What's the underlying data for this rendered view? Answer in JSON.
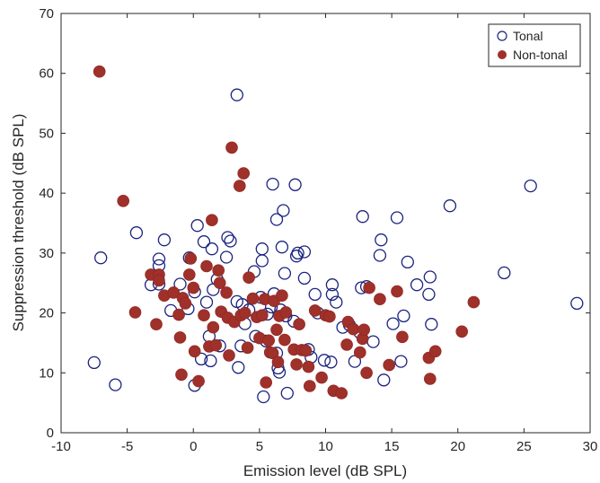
{
  "chart_data": {
    "type": "scatter",
    "title": "",
    "xlabel": "Emission level (dB SPL)",
    "ylabel": "Suppression threshold (dB SPL)",
    "xlim": [
      -10,
      30
    ],
    "ylim": [
      0,
      70
    ],
    "xticks": [
      "-10",
      "-5",
      "0",
      "5",
      "10",
      "15",
      "20",
      "25",
      "30"
    ],
    "yticks": [
      "0",
      "10",
      "20",
      "30",
      "40",
      "50",
      "60",
      "70"
    ],
    "grid": false,
    "legend_position": "top-right",
    "series": [
      {
        "name": "Tonal",
        "marker": "open-circle",
        "color": "#1a237e",
        "points": [
          [
            -7.5,
            11.7
          ],
          [
            -7.0,
            29.2
          ],
          [
            -5.9,
            8.0
          ],
          [
            -4.3,
            33.4
          ],
          [
            -3.2,
            24.7
          ],
          [
            -2.6,
            29.0
          ],
          [
            -2.6,
            27.9
          ],
          [
            -2.6,
            24.8
          ],
          [
            -2.2,
            32.2
          ],
          [
            -1.7,
            20.4
          ],
          [
            -1.0,
            24.8
          ],
          [
            -0.4,
            20.7
          ],
          [
            -0.3,
            29.2
          ],
          [
            0.1,
            23.5
          ],
          [
            0.1,
            7.9
          ],
          [
            0.3,
            34.6
          ],
          [
            0.6,
            12.3
          ],
          [
            0.8,
            31.9
          ],
          [
            1.0,
            21.8
          ],
          [
            1.2,
            16.1
          ],
          [
            1.3,
            12.0
          ],
          [
            1.4,
            30.7
          ],
          [
            1.5,
            23.9
          ],
          [
            1.8,
            25.6
          ],
          [
            2.0,
            14.5
          ],
          [
            2.5,
            29.3
          ],
          [
            2.6,
            32.6
          ],
          [
            2.8,
            32.0
          ],
          [
            3.3,
            56.4
          ],
          [
            3.3,
            21.9
          ],
          [
            3.4,
            10.9
          ],
          [
            3.6,
            14.5
          ],
          [
            3.7,
            21.4
          ],
          [
            3.9,
            18.2
          ],
          [
            4.2,
            20.5
          ],
          [
            4.6,
            26.9
          ],
          [
            4.7,
            16.1
          ],
          [
            5.1,
            22.6
          ],
          [
            5.2,
            30.7
          ],
          [
            5.2,
            28.7
          ],
          [
            5.3,
            6.0
          ],
          [
            5.5,
            15.3
          ],
          [
            5.6,
            19.8
          ],
          [
            5.9,
            21.0
          ],
          [
            6.0,
            41.5
          ],
          [
            6.1,
            23.2
          ],
          [
            6.3,
            35.6
          ],
          [
            6.3,
            13.3
          ],
          [
            6.4,
            10.8
          ],
          [
            6.5,
            10.1
          ],
          [
            6.6,
            20.5
          ],
          [
            6.7,
            31.0
          ],
          [
            6.8,
            37.1
          ],
          [
            6.9,
            26.6
          ],
          [
            7.0,
            19.5
          ],
          [
            7.1,
            6.6
          ],
          [
            7.6,
            18.6
          ],
          [
            7.7,
            41.4
          ],
          [
            7.8,
            29.5
          ],
          [
            7.9,
            30.0
          ],
          [
            8.4,
            30.2
          ],
          [
            8.4,
            25.8
          ],
          [
            8.7,
            13.9
          ],
          [
            8.9,
            12.6
          ],
          [
            9.2,
            23.1
          ],
          [
            9.4,
            20.0
          ],
          [
            9.9,
            12.1
          ],
          [
            10.4,
            11.8
          ],
          [
            10.5,
            24.7
          ],
          [
            10.5,
            23.1
          ],
          [
            10.8,
            21.8
          ],
          [
            11.3,
            17.6
          ],
          [
            11.8,
            18.0
          ],
          [
            12.2,
            11.9
          ],
          [
            12.6,
            16.7
          ],
          [
            12.7,
            24.2
          ],
          [
            12.8,
            36.1
          ],
          [
            13.1,
            24.4
          ],
          [
            13.6,
            15.2
          ],
          [
            14.1,
            29.6
          ],
          [
            14.2,
            32.2
          ],
          [
            14.4,
            8.8
          ],
          [
            15.1,
            18.2
          ],
          [
            15.4,
            35.9
          ],
          [
            15.7,
            11.9
          ],
          [
            15.9,
            19.5
          ],
          [
            16.2,
            28.5
          ],
          [
            16.9,
            24.7
          ],
          [
            17.8,
            23.1
          ],
          [
            17.9,
            26.0
          ],
          [
            18.0,
            18.1
          ],
          [
            19.4,
            37.9
          ],
          [
            23.5,
            26.7
          ],
          [
            25.5,
            41.2
          ],
          [
            29.0,
            21.6
          ]
        ]
      },
      {
        "name": "Non-tonal",
        "marker": "filled-circle",
        "color": "#a0302a",
        "points": [
          [
            -7.1,
            60.3
          ],
          [
            -5.3,
            38.7
          ],
          [
            -4.4,
            20.1
          ],
          [
            -3.2,
            26.4
          ],
          [
            -2.8,
            18.1
          ],
          [
            -2.6,
            26.4
          ],
          [
            -2.6,
            25.4
          ],
          [
            -2.2,
            22.9
          ],
          [
            -1.5,
            23.4
          ],
          [
            -1.1,
            19.7
          ],
          [
            -1.0,
            15.9
          ],
          [
            -0.9,
            9.7
          ],
          [
            -0.8,
            22.5
          ],
          [
            -0.6,
            21.6
          ],
          [
            -0.3,
            26.4
          ],
          [
            -0.2,
            29.1
          ],
          [
            0.0,
            24.2
          ],
          [
            0.1,
            13.6
          ],
          [
            0.4,
            8.6
          ],
          [
            0.8,
            19.6
          ],
          [
            1.0,
            27.8
          ],
          [
            1.2,
            14.4
          ],
          [
            1.4,
            35.5
          ],
          [
            1.5,
            17.6
          ],
          [
            1.7,
            14.6
          ],
          [
            1.9,
            27.1
          ],
          [
            2.0,
            25.0
          ],
          [
            2.1,
            20.2
          ],
          [
            2.5,
            23.4
          ],
          [
            2.6,
            19.2
          ],
          [
            2.7,
            12.9
          ],
          [
            2.9,
            47.6
          ],
          [
            3.1,
            18.5
          ],
          [
            3.5,
            41.2
          ],
          [
            3.6,
            19.6
          ],
          [
            3.8,
            43.3
          ],
          [
            3.9,
            20.0
          ],
          [
            4.1,
            14.2
          ],
          [
            4.2,
            25.9
          ],
          [
            4.5,
            22.4
          ],
          [
            4.8,
            19.3
          ],
          [
            5.0,
            15.8
          ],
          [
            5.2,
            19.6
          ],
          [
            5.4,
            22.3
          ],
          [
            5.5,
            8.4
          ],
          [
            5.7,
            15.4
          ],
          [
            5.8,
            13.4
          ],
          [
            6.0,
            13.3
          ],
          [
            6.1,
            22.0
          ],
          [
            6.3,
            17.2
          ],
          [
            6.4,
            11.8
          ],
          [
            6.5,
            19.5
          ],
          [
            6.7,
            22.9
          ],
          [
            6.9,
            15.5
          ],
          [
            7.0,
            20.1
          ],
          [
            7.6,
            13.9
          ],
          [
            7.8,
            11.4
          ],
          [
            8.0,
            18.1
          ],
          [
            8.2,
            13.8
          ],
          [
            8.5,
            13.7
          ],
          [
            8.7,
            11.0
          ],
          [
            8.8,
            7.8
          ],
          [
            9.2,
            20.4
          ],
          [
            9.7,
            9.2
          ],
          [
            10.0,
            19.6
          ],
          [
            10.3,
            19.4
          ],
          [
            10.6,
            7.0
          ],
          [
            11.2,
            6.6
          ],
          [
            11.6,
            14.7
          ],
          [
            11.7,
            18.5
          ],
          [
            12.1,
            17.3
          ],
          [
            12.6,
            13.4
          ],
          [
            12.8,
            15.7
          ],
          [
            12.9,
            17.2
          ],
          [
            13.1,
            10.0
          ],
          [
            13.3,
            24.2
          ],
          [
            14.1,
            22.3
          ],
          [
            14.8,
            11.3
          ],
          [
            15.4,
            23.6
          ],
          [
            15.8,
            16.0
          ],
          [
            17.8,
            12.5
          ],
          [
            17.9,
            9.0
          ],
          [
            18.3,
            13.6
          ],
          [
            20.3,
            16.9
          ],
          [
            21.2,
            21.8
          ]
        ]
      }
    ]
  }
}
